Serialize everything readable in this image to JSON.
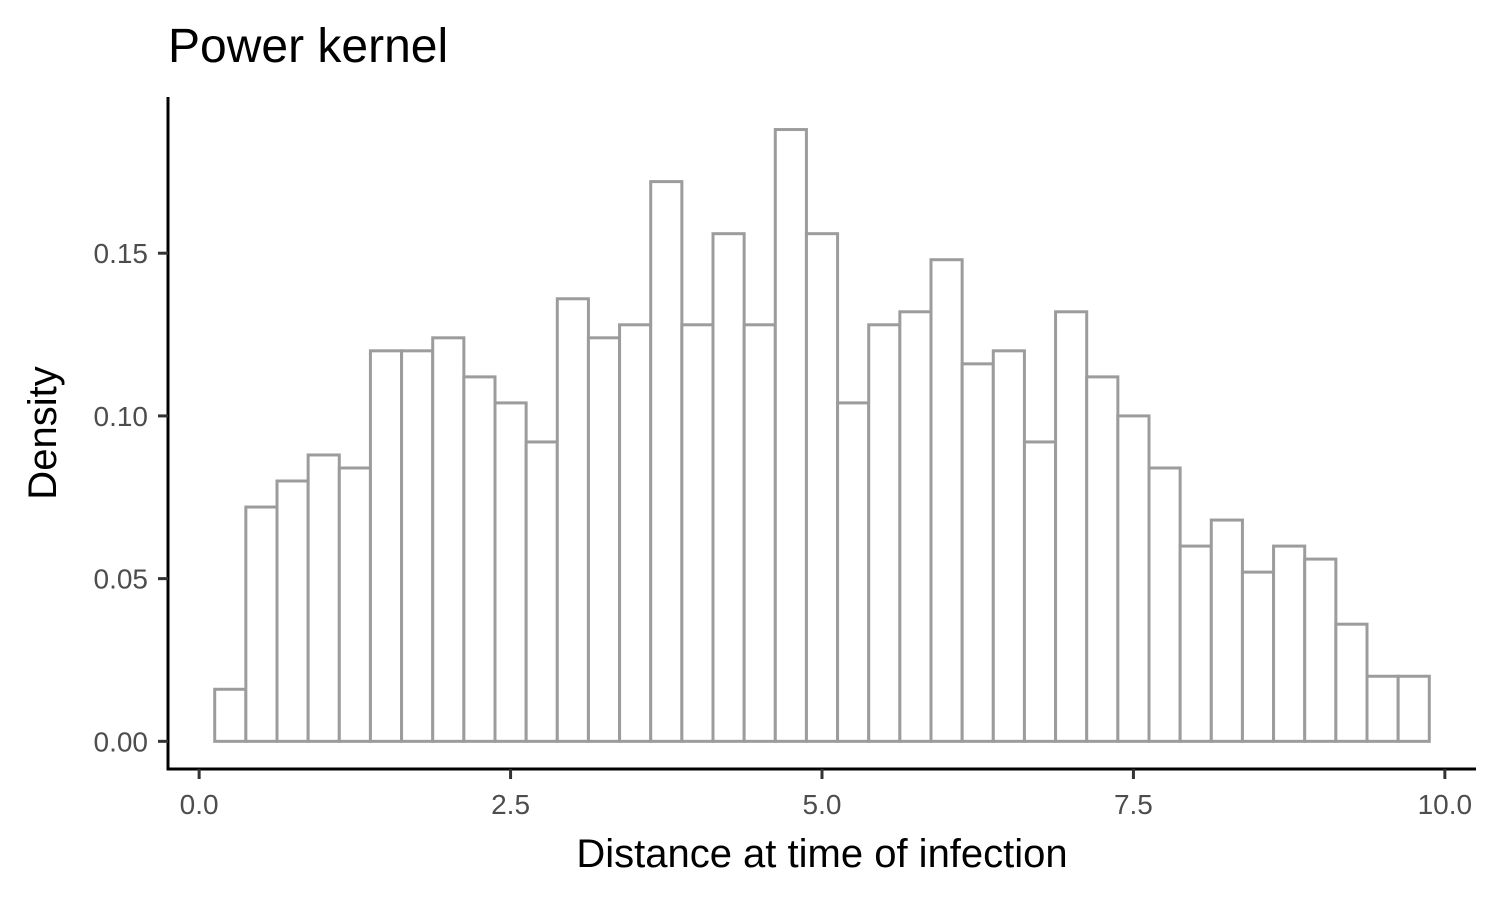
{
  "chart_data": {
    "type": "bar",
    "title": "Power kernel",
    "xlabel": "Distance at time of infection",
    "ylabel": "Density",
    "xlim": [
      -0.25,
      10.25
    ],
    "ylim": [
      -0.0085,
      0.198
    ],
    "xticks": [
      {
        "value": 0.0,
        "label": "0.0"
      },
      {
        "value": 2.5,
        "label": "2.5"
      },
      {
        "value": 5.0,
        "label": "5.0"
      },
      {
        "value": 7.5,
        "label": "7.5"
      },
      {
        "value": 10.0,
        "label": "10.0"
      }
    ],
    "yticks": [
      {
        "value": 0.0,
        "label": "0.00"
      },
      {
        "value": 0.05,
        "label": "0.05"
      },
      {
        "value": 0.1,
        "label": "0.10"
      },
      {
        "value": 0.15,
        "label": "0.15"
      }
    ],
    "bins": [
      {
        "x0": 0.125,
        "x1": 0.375,
        "density": 0.016
      },
      {
        "x0": 0.375,
        "x1": 0.625,
        "density": 0.072
      },
      {
        "x0": 0.625,
        "x1": 0.875,
        "density": 0.08
      },
      {
        "x0": 0.875,
        "x1": 1.125,
        "density": 0.088
      },
      {
        "x0": 1.125,
        "x1": 1.375,
        "density": 0.084
      },
      {
        "x0": 1.375,
        "x1": 1.625,
        "density": 0.12
      },
      {
        "x0": 1.625,
        "x1": 1.875,
        "density": 0.12
      },
      {
        "x0": 1.875,
        "x1": 2.125,
        "density": 0.124
      },
      {
        "x0": 2.125,
        "x1": 2.375,
        "density": 0.112
      },
      {
        "x0": 2.375,
        "x1": 2.625,
        "density": 0.104
      },
      {
        "x0": 2.625,
        "x1": 2.875,
        "density": 0.092
      },
      {
        "x0": 2.875,
        "x1": 3.125,
        "density": 0.136
      },
      {
        "x0": 3.125,
        "x1": 3.375,
        "density": 0.124
      },
      {
        "x0": 3.375,
        "x1": 3.625,
        "density": 0.128
      },
      {
        "x0": 3.625,
        "x1": 3.875,
        "density": 0.172
      },
      {
        "x0": 3.875,
        "x1": 4.125,
        "density": 0.128
      },
      {
        "x0": 4.125,
        "x1": 4.375,
        "density": 0.156
      },
      {
        "x0": 4.375,
        "x1": 4.625,
        "density": 0.128
      },
      {
        "x0": 4.625,
        "x1": 4.875,
        "density": 0.188
      },
      {
        "x0": 4.875,
        "x1": 5.125,
        "density": 0.156
      },
      {
        "x0": 5.125,
        "x1": 5.375,
        "density": 0.104
      },
      {
        "x0": 5.375,
        "x1": 5.625,
        "density": 0.128
      },
      {
        "x0": 5.625,
        "x1": 5.875,
        "density": 0.132
      },
      {
        "x0": 5.875,
        "x1": 6.125,
        "density": 0.148
      },
      {
        "x0": 6.125,
        "x1": 6.375,
        "density": 0.116
      },
      {
        "x0": 6.375,
        "x1": 6.625,
        "density": 0.12
      },
      {
        "x0": 6.625,
        "x1": 6.875,
        "density": 0.092
      },
      {
        "x0": 6.875,
        "x1": 7.125,
        "density": 0.132
      },
      {
        "x0": 7.125,
        "x1": 7.375,
        "density": 0.112
      },
      {
        "x0": 7.375,
        "x1": 7.625,
        "density": 0.1
      },
      {
        "x0": 7.625,
        "x1": 7.875,
        "density": 0.084
      },
      {
        "x0": 7.875,
        "x1": 8.125,
        "density": 0.06
      },
      {
        "x0": 8.125,
        "x1": 8.375,
        "density": 0.068
      },
      {
        "x0": 8.375,
        "x1": 8.625,
        "density": 0.052
      },
      {
        "x0": 8.625,
        "x1": 8.875,
        "density": 0.06
      },
      {
        "x0": 8.875,
        "x1": 9.125,
        "density": 0.056
      },
      {
        "x0": 9.125,
        "x1": 9.375,
        "density": 0.036
      },
      {
        "x0": 9.375,
        "x1": 9.625,
        "density": 0.02
      },
      {
        "x0": 9.625,
        "x1": 9.875,
        "density": 0.02
      }
    ],
    "bar_fill": "#ffffff",
    "bar_stroke": "#9c9c9c",
    "grid": false,
    "legend": "none"
  }
}
